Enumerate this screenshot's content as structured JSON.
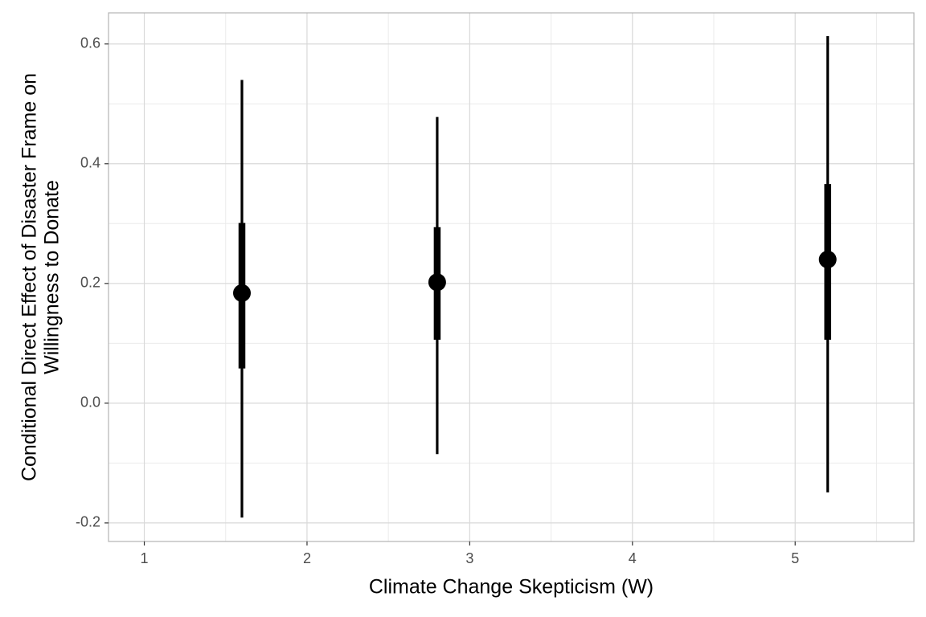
{
  "chart_data": {
    "type": "pointrange",
    "x_label": "Climate Change Skepticism (W)",
    "y_label": [
      "Conditional Direct Effect of Disaster Frame on",
      "Willingness to Donate"
    ],
    "x": [
      1.6,
      2.8,
      5.2
    ],
    "values": [
      0.184,
      0.202,
      0.24
    ],
    "inner_low": [
      0.058,
      0.106,
      0.106
    ],
    "inner_high": [
      0.301,
      0.294,
      0.366
    ],
    "outer_low": [
      -0.191,
      -0.085,
      -0.149
    ],
    "outer_high": [
      0.54,
      0.478,
      0.613
    ],
    "color": "#000000",
    "xlim": [
      0.78,
      5.73
    ],
    "ylim": [
      -0.231,
      0.652
    ],
    "xticks": [
      1,
      2,
      3,
      4,
      5
    ],
    "yticks": [
      -0.2,
      {
        "value": 0,
        "label": "0.0"
      },
      0.2,
      0.4,
      0.6
    ],
    "grid": true,
    "minor_grid": true
  }
}
